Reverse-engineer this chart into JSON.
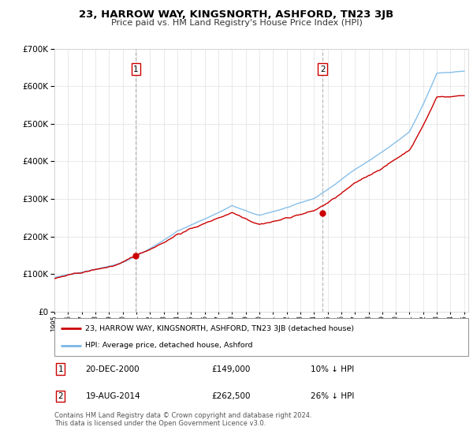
{
  "title": "23, HARROW WAY, KINGSNORTH, ASHFORD, TN23 3JB",
  "subtitle": "Price paid vs. HM Land Registry's House Price Index (HPI)",
  "sale1_date": "20-DEC-2000",
  "sale1_price": 149000,
  "sale1_label": "10% ↓ HPI",
  "sale2_date": "19-AUG-2014",
  "sale2_price": 262500,
  "sale2_label": "26% ↓ HPI",
  "sale1_year": 2000.97,
  "sale2_year": 2014.63,
  "legend_property": "23, HARROW WAY, KINGSNORTH, ASHFORD, TN23 3JB (detached house)",
  "legend_hpi": "HPI: Average price, detached house, Ashford",
  "footer": "Contains HM Land Registry data © Crown copyright and database right 2024.\nThis data is licensed under the Open Government Licence v3.0.",
  "hpi_color": "#7ab8e8",
  "price_color": "#cc0000",
  "marker_color": "#cc0000",
  "dashed_color": "#aaaaaa",
  "ylim_min": 0,
  "ylim_max": 700000,
  "grid_color": "#e0e0e0",
  "background_color": "#ffffff"
}
